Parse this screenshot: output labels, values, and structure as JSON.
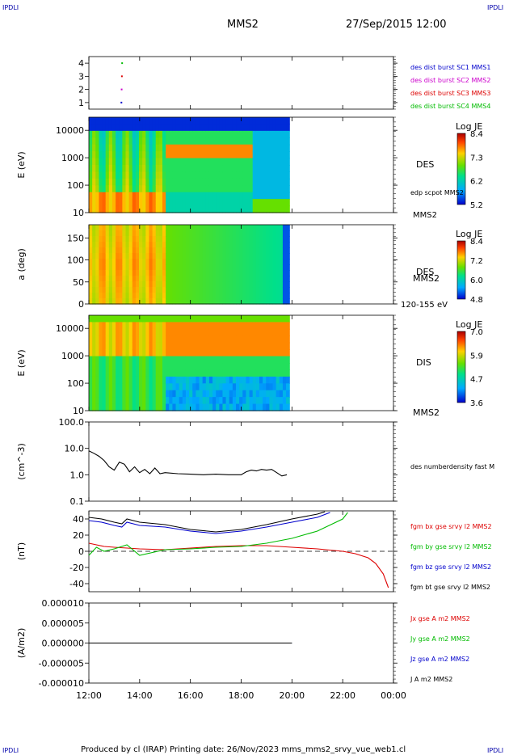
{
  "header": {
    "corner_tl": "IPDLI",
    "corner_tr": "IPDLI",
    "corner_bl": "IPDLI",
    "corner_br": "IPDLI",
    "mission": "MMS2",
    "datetime": "27/Sep/2015 12:00"
  },
  "footer": {
    "text": "Produced by cl (IRAP)    Printing date: 26/Nov/2023   mms_mms2_srvy_vue_web1.cl"
  },
  "time_axis": {
    "ticks": [
      "12:00",
      "14:00",
      "16:00",
      "18:00",
      "20:00",
      "22:00",
      "00:00"
    ]
  },
  "colors": {
    "blue": "#0000cc",
    "magenta": "#cc00cc",
    "red": "#dd0000",
    "green": "#00bb00",
    "black": "#000000"
  },
  "chart_data": [
    {
      "id": "panel1",
      "type": "scatter",
      "yticks": [
        "1",
        "2",
        "3",
        "4"
      ],
      "ylim": [
        0.5,
        4.5
      ],
      "series": [
        {
          "name": "des dist burst SC1 MMS1",
          "color": "#0000cc",
          "x": [
            13.25
          ],
          "y": [
            1
          ]
        },
        {
          "name": "des dist burst SC2 MMS2",
          "color": "#cc00cc",
          "x": [
            13.25
          ],
          "y": [
            2
          ]
        },
        {
          "name": "des dist burst SC3 MMS3",
          "color": "#dd0000",
          "x": [
            13.25
          ],
          "y": [
            3
          ]
        },
        {
          "name": "des dist burst SC4 MMS4",
          "color": "#00bb00",
          "x": [
            13.25
          ],
          "y": [
            4
          ]
        }
      ]
    },
    {
      "id": "panel2",
      "type": "heatmap",
      "ylabel": "E (eV)",
      "yscale": "log",
      "ylim": [
        10,
        30000
      ],
      "yticks": [
        "10",
        "100",
        "1000",
        "10000"
      ],
      "right_label": "DES",
      "right_sub1": "edp scpot MMS2",
      "right_sub2": "MMS2",
      "colorbar": {
        "title": "Log JE",
        "ticks": [
          "8.4",
          "7.3",
          "6.2",
          "5.2"
        ]
      }
    },
    {
      "id": "panel3",
      "type": "heatmap",
      "ylabel": "a (deg)",
      "ylim": [
        0,
        180
      ],
      "yticks": [
        "0",
        "50",
        "100",
        "150"
      ],
      "right_label": "DES",
      "right_sub1": "MMS2",
      "right_sub2": "120-155 eV",
      "colorbar": {
        "title": "Log JE",
        "ticks": [
          "8.4",
          "7.2",
          "6.0",
          "4.8"
        ]
      }
    },
    {
      "id": "panel4",
      "type": "heatmap",
      "ylabel": "E (eV)",
      "yscale": "log",
      "ylim": [
        10,
        30000
      ],
      "yticks": [
        "10",
        "100",
        "1000",
        "10000"
      ],
      "right_label": "DIS",
      "right_sub1": "MMS2",
      "colorbar": {
        "title": "Log JE",
        "ticks": [
          "7.0",
          "5.9",
          "4.7",
          "3.6"
        ]
      }
    },
    {
      "id": "panel5",
      "type": "line",
      "ylabel": "(cm^-3)",
      "yscale": "log",
      "ylim": [
        0.1,
        100
      ],
      "yticks": [
        "0.1",
        "1.0",
        "10.0",
        "100.0"
      ],
      "series": [
        {
          "name": "des numberdensity fast M",
          "color": "#000000",
          "x": [
            12.0,
            12.2,
            12.4,
            12.6,
            12.8,
            13.0,
            13.2,
            13.4,
            13.6,
            13.8,
            14.0,
            14.2,
            14.4,
            14.6,
            14.8,
            15.0,
            15.5,
            16.0,
            16.5,
            17.0,
            17.5,
            18.0,
            18.2,
            18.4,
            18.6,
            18.8,
            19.0,
            19.2,
            19.4,
            19.6,
            19.8
          ],
          "y": [
            8.0,
            6.5,
            5.0,
            3.5,
            2.0,
            1.5,
            3.0,
            2.5,
            1.3,
            2.0,
            1.2,
            1.6,
            1.1,
            1.8,
            1.1,
            1.2,
            1.1,
            1.05,
            1.0,
            1.05,
            1.0,
            1.0,
            1.3,
            1.5,
            1.4,
            1.6,
            1.5,
            1.6,
            1.2,
            0.9,
            1.0
          ]
        }
      ]
    },
    {
      "id": "panel6",
      "type": "line",
      "ylabel": "(nT)",
      "ylim": [
        -50,
        50
      ],
      "yticks": [
        "-40",
        "-20",
        "0",
        "20",
        "40"
      ],
      "series": [
        {
          "name": "fgm bx gse srvy l2 MMS2",
          "color": "#dd0000",
          "x": [
            12.0,
            12.3,
            12.6,
            13.0,
            13.5,
            14.0,
            15.0,
            16.0,
            17.0,
            18.0,
            19.0,
            20.0,
            21.0,
            22.0,
            22.5,
            23.0,
            23.3,
            23.6,
            23.8
          ],
          "y": [
            10,
            8,
            6,
            5,
            4,
            3,
            2,
            4,
            6,
            7,
            7,
            5,
            3,
            0,
            -3,
            -8,
            -15,
            -28,
            -45
          ]
        },
        {
          "name": "fgm by gse srvy l2 MMS2",
          "color": "#00bb00",
          "x": [
            12.0,
            12.3,
            12.6,
            13.0,
            13.5,
            14.0,
            15.0,
            16.0,
            17.0,
            18.0,
            19.0,
            20.0,
            21.0,
            22.0,
            22.2
          ],
          "y": [
            -5,
            5,
            0,
            3,
            8,
            -5,
            2,
            3,
            5,
            6,
            10,
            16,
            25,
            40,
            48
          ]
        },
        {
          "name": "fgm bz gse srvy l2 MMS2",
          "color": "#0000cc",
          "x": [
            12.0,
            12.5,
            13.0,
            13.3,
            13.5,
            14.0,
            15.0,
            16.0,
            17.0,
            18.0,
            19.0,
            20.0,
            21.0,
            21.5
          ],
          "y": [
            38,
            36,
            32,
            30,
            36,
            32,
            30,
            25,
            22,
            25,
            30,
            36,
            42,
            48
          ]
        },
        {
          "name": "fgm bt gse srvy l2 MMS2",
          "color": "#000000",
          "x": [
            12.0,
            12.5,
            13.0,
            13.3,
            13.5,
            14.0,
            15.0,
            16.0,
            17.0,
            18.0,
            19.0,
            20.0,
            21.0,
            21.3
          ],
          "y": [
            42,
            40,
            36,
            34,
            40,
            36,
            33,
            27,
            24,
            27,
            33,
            40,
            46,
            49
          ]
        }
      ]
    },
    {
      "id": "panel7",
      "type": "line",
      "ylabel": "(A/m2)",
      "ylim": [
        -1e-05,
        1e-05
      ],
      "yticks": [
        "0.000010",
        "0.000005",
        "0.000000",
        "-0.000005",
        "-0.000010"
      ],
      "series": [
        {
          "name": "Jx gse A m2 MMS2",
          "color": "#dd0000",
          "x": [
            12.0,
            20.0
          ],
          "y": [
            0,
            0
          ]
        },
        {
          "name": "Jy gse A m2 MMS2",
          "color": "#00bb00",
          "x": [
            12.0,
            20.0
          ],
          "y": [
            0,
            0
          ]
        },
        {
          "name": "Jz gse A m2 MMS2",
          "color": "#0000cc",
          "x": [
            12.0,
            20.0
          ],
          "y": [
            0,
            0
          ]
        },
        {
          "name": "J A m2 MMS2",
          "color": "#000000",
          "x": [
            12.0,
            20.0
          ],
          "y": [
            0,
            0
          ]
        }
      ]
    }
  ]
}
